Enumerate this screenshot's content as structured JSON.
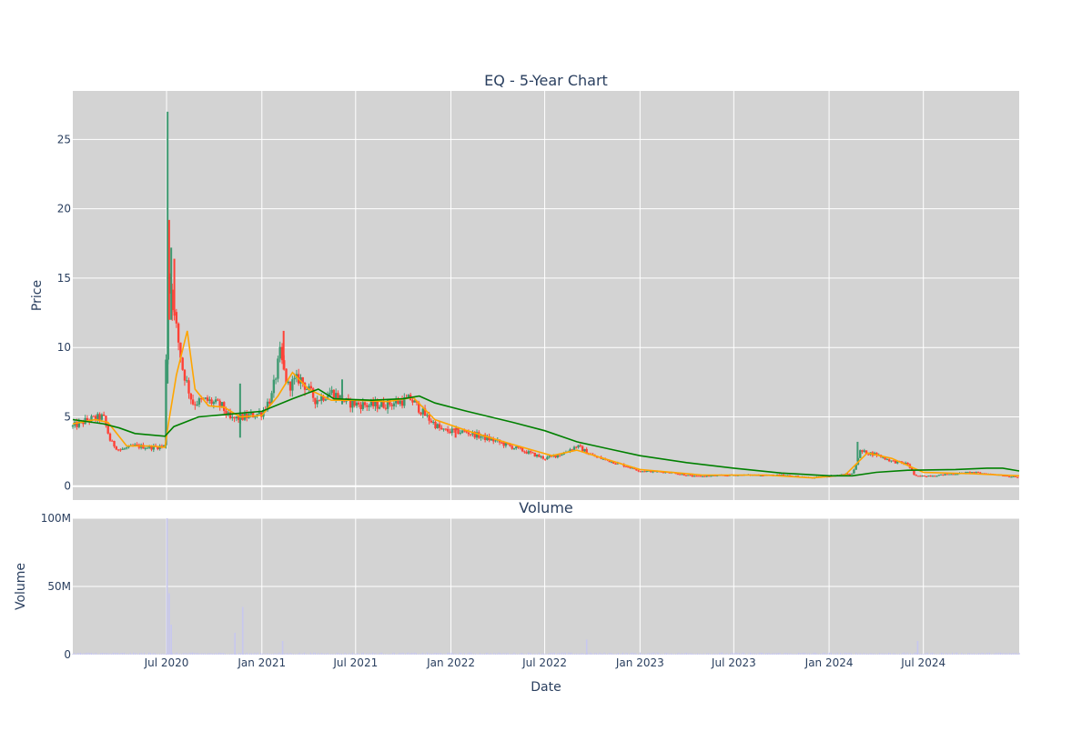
{
  "colors": {
    "plot_bg": "#d3d3d3",
    "grid": "#ffffff",
    "up_candle": "#3d9970",
    "down_candle": "#ff4136",
    "ma_short": "#ffa500",
    "ma_long": "#008000",
    "volume_bar": "#c7c7ef",
    "text": "#2a3f5f"
  },
  "chart_data": [
    {
      "type": "candlestick",
      "title": "EQ - 5-Year Chart",
      "xlabel": "",
      "ylabel": "Price",
      "ylim": [
        -1,
        28.5
      ],
      "yticks": [
        0,
        5,
        10,
        15,
        20,
        25
      ],
      "xlim": [
        "2020-01-02",
        "2025-01-02"
      ],
      "xticks": [
        "2020-07-01",
        "2021-01-01",
        "2021-07-01",
        "2022-01-01",
        "2022-07-01",
        "2023-01-01",
        "2023-07-01",
        "2024-01-01",
        "2024-07-01"
      ],
      "grid": true,
      "anchors": [
        [
          "2020-01-02",
          4.3
        ],
        [
          "2020-02-01",
          4.8
        ],
        [
          "2020-03-01",
          5.0
        ],
        [
          "2020-03-15",
          3.2
        ],
        [
          "2020-04-01",
          2.6
        ],
        [
          "2020-05-01",
          2.9
        ],
        [
          "2020-06-01",
          2.8
        ],
        [
          "2020-06-28",
          2.9
        ],
        [
          "2020-07-02",
          16.0
        ],
        [
          "2020-07-15",
          12.5
        ],
        [
          "2020-08-01",
          8.5
        ],
        [
          "2020-08-20",
          6.0
        ],
        [
          "2020-09-15",
          6.2
        ],
        [
          "2020-10-15",
          5.8
        ],
        [
          "2020-11-01",
          4.8
        ],
        [
          "2020-12-01",
          5.0
        ],
        [
          "2021-01-01",
          5.3
        ],
        [
          "2021-01-20",
          6.5
        ],
        [
          "2021-02-05",
          9.5
        ],
        [
          "2021-02-20",
          7.2
        ],
        [
          "2021-03-15",
          7.8
        ],
        [
          "2021-04-15",
          6.2
        ],
        [
          "2021-05-15",
          6.8
        ],
        [
          "2021-06-15",
          6.0
        ],
        [
          "2021-08-01",
          5.8
        ],
        [
          "2021-09-15",
          6.0
        ],
        [
          "2021-10-15",
          6.3
        ],
        [
          "2021-11-15",
          5.0
        ],
        [
          "2021-12-15",
          4.0
        ],
        [
          "2022-02-01",
          3.9
        ],
        [
          "2022-04-01",
          3.2
        ],
        [
          "2022-06-01",
          2.4
        ],
        [
          "2022-07-01",
          2.0
        ],
        [
          "2022-08-01",
          2.3
        ],
        [
          "2022-09-01",
          2.9
        ],
        [
          "2022-10-01",
          2.2
        ],
        [
          "2022-12-01",
          1.5
        ],
        [
          "2023-01-01",
          1.1
        ],
        [
          "2023-03-01",
          1.0
        ],
        [
          "2023-04-15",
          0.7
        ],
        [
          "2023-07-01",
          0.8
        ],
        [
          "2023-10-01",
          0.8
        ],
        [
          "2023-12-01",
          0.6
        ],
        [
          "2024-01-15",
          0.8
        ],
        [
          "2024-02-15",
          0.9
        ],
        [
          "2024-03-01",
          2.5
        ],
        [
          "2024-04-01",
          2.3
        ],
        [
          "2024-05-01",
          1.8
        ],
        [
          "2024-06-01",
          1.6
        ],
        [
          "2024-06-15",
          0.7
        ],
        [
          "2024-08-01",
          0.8
        ],
        [
          "2024-10-01",
          1.0
        ],
        [
          "2024-12-01",
          0.8
        ],
        [
          "2025-01-02",
          0.6
        ]
      ],
      "spikes": [
        [
          "2020-07-03",
          27.0,
          7.4
        ],
        [
          "2020-07-06",
          19.2,
          12.0
        ],
        [
          "2020-07-10",
          17.2,
          12.0
        ],
        [
          "2020-07-16",
          16.4,
          12.3
        ],
        [
          "2020-11-20",
          7.4,
          3.5
        ],
        [
          "2021-02-12",
          11.2,
          8.4
        ],
        [
          "2021-06-05",
          7.7,
          5.9
        ],
        [
          "2022-01-10",
          4.2,
          3.5
        ],
        [
          "2024-02-25",
          3.2,
          1.8
        ]
      ],
      "series": [
        {
          "name": "",
          "kind": "moving-average-short",
          "points": [
            [
              "2020-01-02",
              4.5
            ],
            [
              "2020-02-15",
              4.8
            ],
            [
              "2020-03-10",
              4.6
            ],
            [
              "2020-04-15",
              2.9
            ],
            [
              "2020-06-01",
              2.9
            ],
            [
              "2020-06-28",
              2.8
            ],
            [
              "2020-07-05",
              4.6
            ],
            [
              "2020-07-20",
              8.0
            ],
            [
              "2020-08-10",
              11.2
            ],
            [
              "2020-08-25",
              7.0
            ],
            [
              "2020-09-20",
              5.8
            ],
            [
              "2020-10-20",
              5.7
            ],
            [
              "2020-11-20",
              5.0
            ],
            [
              "2021-01-01",
              5.1
            ],
            [
              "2021-02-01",
              6.5
            ],
            [
              "2021-03-01",
              8.2
            ],
            [
              "2021-04-01",
              7.0
            ],
            [
              "2021-05-15",
              6.2
            ],
            [
              "2021-07-01",
              6.2
            ],
            [
              "2021-09-01",
              6.1
            ],
            [
              "2021-10-20",
              6.4
            ],
            [
              "2021-12-01",
              4.8
            ],
            [
              "2022-02-01",
              4.0
            ],
            [
              "2022-05-01",
              3.0
            ],
            [
              "2022-07-15",
              2.2
            ],
            [
              "2022-09-01",
              2.6
            ],
            [
              "2022-11-01",
              1.9
            ],
            [
              "2023-01-01",
              1.2
            ],
            [
              "2023-05-01",
              0.8
            ],
            [
              "2023-09-01",
              0.8
            ],
            [
              "2023-12-01",
              0.6
            ],
            [
              "2024-02-01",
              0.8
            ],
            [
              "2024-03-15",
              2.4
            ],
            [
              "2024-05-01",
              2.0
            ],
            [
              "2024-07-01",
              1.0
            ],
            [
              "2024-10-01",
              0.9
            ],
            [
              "2025-01-02",
              0.75
            ]
          ]
        },
        {
          "name": "",
          "kind": "moving-average-long",
          "points": [
            [
              "2020-01-02",
              4.8
            ],
            [
              "2020-03-01",
              4.5
            ],
            [
              "2020-04-01",
              4.2
            ],
            [
              "2020-05-01",
              3.8
            ],
            [
              "2020-06-28",
              3.6
            ],
            [
              "2020-07-15",
              4.3
            ],
            [
              "2020-09-01",
              5.0
            ],
            [
              "2020-11-01",
              5.2
            ],
            [
              "2021-01-01",
              5.4
            ],
            [
              "2021-03-01",
              6.3
            ],
            [
              "2021-04-20",
              7.0
            ],
            [
              "2021-05-20",
              6.3
            ],
            [
              "2021-08-01",
              6.2
            ],
            [
              "2021-10-01",
              6.3
            ],
            [
              "2021-11-01",
              6.5
            ],
            [
              "2021-12-01",
              6.0
            ],
            [
              "2022-02-01",
              5.4
            ],
            [
              "2022-05-01",
              4.6
            ],
            [
              "2022-07-01",
              4.0
            ],
            [
              "2022-09-01",
              3.2
            ],
            [
              "2022-11-01",
              2.7
            ],
            [
              "2023-01-01",
              2.2
            ],
            [
              "2023-04-01",
              1.7
            ],
            [
              "2023-07-01",
              1.3
            ],
            [
              "2023-10-01",
              0.95
            ],
            [
              "2024-01-01",
              0.75
            ],
            [
              "2024-02-15",
              0.75
            ],
            [
              "2024-04-01",
              1.0
            ],
            [
              "2024-06-01",
              1.15
            ],
            [
              "2024-09-01",
              1.2
            ],
            [
              "2024-11-01",
              1.3
            ],
            [
              "2024-12-01",
              1.3
            ],
            [
              "2025-01-02",
              1.1
            ]
          ]
        }
      ]
    },
    {
      "type": "bar",
      "title": "Volume",
      "xlabel": "Date",
      "ylabel": "Volume",
      "ylim": [
        0,
        100000000
      ],
      "yticks": [
        0,
        50000000,
        100000000
      ],
      "ytick_labels": [
        "0",
        "50M",
        "100M"
      ],
      "xtick_labels": [
        "Jul 2020",
        "Jan 2021",
        "Jul 2021",
        "Jan 2022",
        "Jul 2022",
        "Jan 2023",
        "Jul 2023",
        "Jan 2024",
        "Jul 2024"
      ],
      "grid": true,
      "spikes": [
        [
          "2020-07-02",
          100000000
        ],
        [
          "2020-07-06",
          45000000
        ],
        [
          "2020-07-10",
          22000000
        ],
        [
          "2020-11-10",
          16000000
        ],
        [
          "2020-11-25",
          35000000
        ],
        [
          "2021-02-10",
          10000000
        ],
        [
          "2022-09-20",
          11000000
        ],
        [
          "2024-06-20",
          10000000
        ]
      ],
      "baseline": 800000
    }
  ]
}
